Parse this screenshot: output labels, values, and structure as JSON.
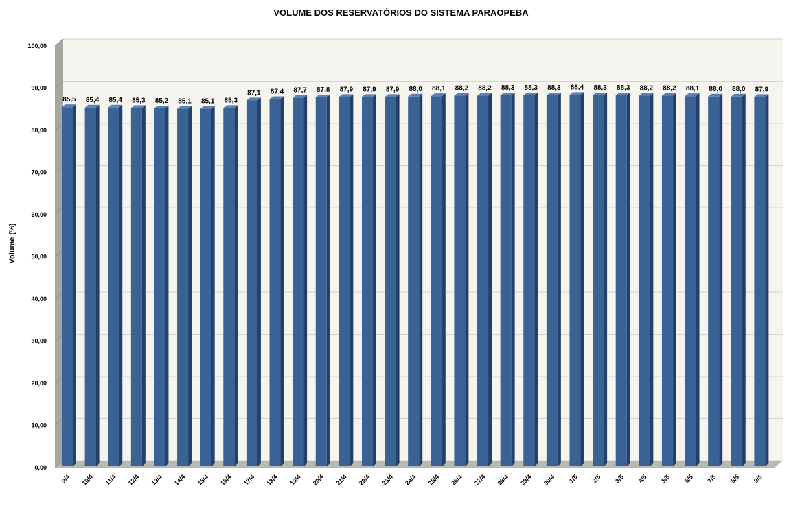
{
  "colors": {
    "bar_front": "#3a6294",
    "bar_side": "#22406a",
    "bar_top": "#5b82b4",
    "plot_back": "#f5f4ee",
    "wall_left": "#a7a7a2",
    "floor": "#b9b9b4",
    "grid": "#d4d4d0"
  },
  "chart_data": {
    "type": "bar",
    "title": "VOLUME DOS RESERVATÓRIOS DO SISTEMA PARAOPEBA",
    "xlabel": "",
    "ylabel": "Volume (%)",
    "ylim": [
      0,
      100
    ],
    "yticks": [
      "0,00",
      "10,00",
      "20,00",
      "30,00",
      "40,00",
      "50,00",
      "60,00",
      "70,00",
      "80,00",
      "90,00",
      "100,00"
    ],
    "grid": true,
    "legend": "none",
    "categories": [
      "9/4",
      "10/4",
      "11/4",
      "12/4",
      "13/4",
      "14/4",
      "15/4",
      "16/4",
      "17/4",
      "18/4",
      "19/4",
      "20/4",
      "21/4",
      "22/4",
      "23/4",
      "24/4",
      "25/4",
      "26/4",
      "27/4",
      "28/4",
      "29/4",
      "30/4",
      "1/5",
      "2/5",
      "3/5",
      "4/5",
      "5/5",
      "6/5",
      "7/5",
      "8/5",
      "9/5"
    ],
    "values": [
      85.5,
      85.4,
      85.4,
      85.3,
      85.2,
      85.1,
      85.1,
      85.3,
      87.1,
      87.4,
      87.7,
      87.8,
      87.9,
      87.9,
      87.9,
      88.0,
      88.1,
      88.2,
      88.2,
      88.3,
      88.3,
      88.3,
      88.4,
      88.3,
      88.3,
      88.2,
      88.2,
      88.1,
      88.0,
      88.0,
      87.9
    ],
    "data_labels": [
      "85,5",
      "85,4",
      "85,4",
      "85,3",
      "85,2",
      "85,1",
      "85,1",
      "85,3",
      "87,1",
      "87,4",
      "87,7",
      "87,8",
      "87,9",
      "87,9",
      "87,9",
      "88,0",
      "88,1",
      "88,2",
      "88,2",
      "88,3",
      "88,3",
      "88,3",
      "88,4",
      "88,3",
      "88,3",
      "88,2",
      "88,2",
      "88,1",
      "88,0",
      "88,0",
      "87,9"
    ]
  }
}
